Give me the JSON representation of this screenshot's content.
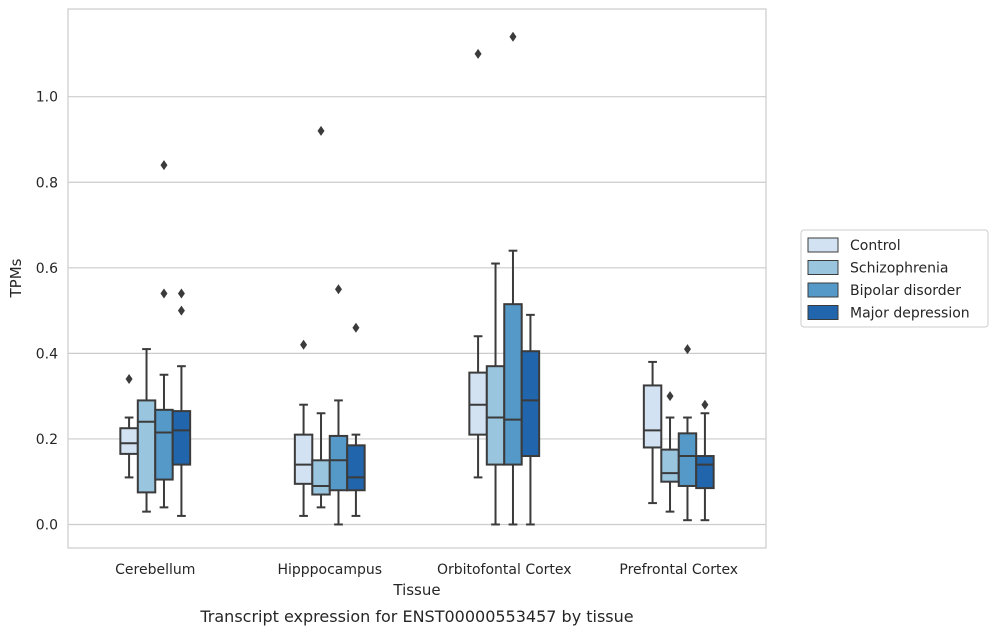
{
  "chart_data": {
    "type": "box",
    "title": "Transcript expression for ENST00000553457 by tissue",
    "xlabel": "Tissue",
    "ylabel": "TPMs",
    "ylim": [
      -0.055,
      1.205
    ],
    "yticks": [
      0.0,
      0.2,
      0.4,
      0.6,
      0.8,
      1.0
    ],
    "ytick_labels": [
      "0.0",
      "0.2",
      "0.4",
      "0.6",
      "0.8",
      "1.0"
    ],
    "grid": "horizontal",
    "legend_position": "right",
    "categories": [
      "Cerebellum",
      "Hipppocampus",
      "Orbitofontal Cortex",
      "Prefrontal Cortex"
    ],
    "series": [
      {
        "name": "Control",
        "color": "#d2e2f2",
        "boxes": [
          {
            "whisker_low": 0.11,
            "q1": 0.165,
            "median": 0.19,
            "q3": 0.225,
            "whisker_high": 0.25,
            "outliers": [
              0.34
            ]
          },
          {
            "whisker_low": 0.02,
            "q1": 0.095,
            "median": 0.14,
            "q3": 0.21,
            "whisker_high": 0.28,
            "outliers": [
              0.42
            ]
          },
          {
            "whisker_low": 0.11,
            "q1": 0.21,
            "median": 0.28,
            "q3": 0.355,
            "whisker_high": 0.44,
            "outliers": [
              1.1
            ]
          },
          {
            "whisker_low": 0.05,
            "q1": 0.18,
            "median": 0.22,
            "q3": 0.325,
            "whisker_high": 0.38,
            "outliers": []
          }
        ]
      },
      {
        "name": "Schizophrenia",
        "color": "#9ac5df",
        "boxes": [
          {
            "whisker_low": 0.03,
            "q1": 0.075,
            "median": 0.24,
            "q3": 0.29,
            "whisker_high": 0.41,
            "outliers": []
          },
          {
            "whisker_low": 0.04,
            "q1": 0.07,
            "median": 0.09,
            "q3": 0.15,
            "whisker_high": 0.26,
            "outliers": [
              0.92
            ]
          },
          {
            "whisker_low": 0.0,
            "q1": 0.14,
            "median": 0.25,
            "q3": 0.37,
            "whisker_high": 0.61,
            "outliers": []
          },
          {
            "whisker_low": 0.03,
            "q1": 0.1,
            "median": 0.12,
            "q3": 0.175,
            "whisker_high": 0.25,
            "outliers": [
              0.3
            ]
          }
        ]
      },
      {
        "name": "Bipolar disorder",
        "color": "#5599c8",
        "boxes": [
          {
            "whisker_low": 0.04,
            "q1": 0.105,
            "median": 0.215,
            "q3": 0.268,
            "whisker_high": 0.35,
            "outliers": [
              0.84,
              0.54
            ]
          },
          {
            "whisker_low": 0.0,
            "q1": 0.08,
            "median": 0.15,
            "q3": 0.207,
            "whisker_high": 0.29,
            "outliers": [
              0.55
            ]
          },
          {
            "whisker_low": 0.0,
            "q1": 0.14,
            "median": 0.245,
            "q3": 0.515,
            "whisker_high": 0.64,
            "outliers": [
              1.14
            ]
          },
          {
            "whisker_low": 0.01,
            "q1": 0.09,
            "median": 0.16,
            "q3": 0.213,
            "whisker_high": 0.25,
            "outliers": [
              0.41
            ]
          }
        ]
      },
      {
        "name": "Major depression",
        "color": "#2166ac",
        "boxes": [
          {
            "whisker_low": 0.02,
            "q1": 0.14,
            "median": 0.22,
            "q3": 0.265,
            "whisker_high": 0.37,
            "outliers": [
              0.54,
              0.5
            ]
          },
          {
            "whisker_low": 0.02,
            "q1": 0.08,
            "median": 0.11,
            "q3": 0.185,
            "whisker_high": 0.21,
            "outliers": [
              0.46
            ]
          },
          {
            "whisker_low": 0.0,
            "q1": 0.16,
            "median": 0.29,
            "q3": 0.405,
            "whisker_high": 0.49,
            "outliers": []
          },
          {
            "whisker_low": 0.01,
            "q1": 0.085,
            "median": 0.14,
            "q3": 0.16,
            "whisker_high": 0.26,
            "outliers": [
              0.28
            ]
          }
        ]
      }
    ]
  }
}
